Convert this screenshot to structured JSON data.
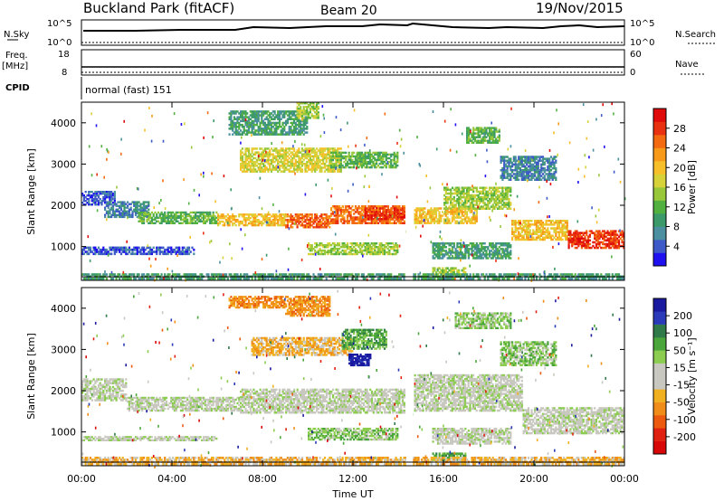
{
  "header": {
    "title": "Buckland Park (fitACF)",
    "beam": "Beam 20",
    "date": "19/Nov/2015"
  },
  "nsky_panel": {
    "label": "N.Sky",
    "right_label": "N.Search",
    "left_ticks": [
      "10^5",
      "10^0"
    ],
    "right_ticks": [
      "10^5",
      "10^0"
    ]
  },
  "freq_panel": {
    "label": "Freq.",
    "unit": "[MHz]",
    "right_label": "Nave",
    "left_ticks": [
      "18",
      "8"
    ],
    "right_ticks": [
      "60",
      "0"
    ]
  },
  "cpid_panel": {
    "label": "CPID",
    "value": "normal (fast) 151"
  },
  "chart_data": [
    {
      "type": "heatmap",
      "quantity": "Power",
      "ylabel": "Slant Range [km]",
      "xlabel": "Time UT",
      "x_ticks": [
        "00:00",
        "04:00",
        "08:00",
        "12:00",
        "16:00",
        "20:00",
        "00:00"
      ],
      "x_range_hours": [
        0,
        24
      ],
      "y_ticks": [
        1000,
        2000,
        3000,
        4000
      ],
      "y_range_km": [
        180,
        4500
      ],
      "colorbar": {
        "label": "Power [dB]",
        "ticks": [
          "4",
          "8",
          "12",
          "16",
          "20",
          "24",
          "28"
        ],
        "colors": [
          "#1f10f0",
          "#3d5ac8",
          "#4b8fa0",
          "#3c9a6a",
          "#52b040",
          "#98c83a",
          "#d8d23a",
          "#f7c02a",
          "#f79a1a",
          "#f36a10",
          "#e93010",
          "#e10a0a"
        ]
      },
      "bands": [
        {
          "t0": 0.0,
          "t1": 1.5,
          "r0": 2000,
          "r1": 2350,
          "c": 1
        },
        {
          "t0": 1.0,
          "t1": 3.0,
          "r0": 1700,
          "r1": 2100,
          "c": 2
        },
        {
          "t0": 2.5,
          "t1": 6.0,
          "r0": 1550,
          "r1": 1850,
          "c": 4
        },
        {
          "t0": 6.0,
          "t1": 9.0,
          "r0": 1500,
          "r1": 1800,
          "c": 7
        },
        {
          "t0": 9.0,
          "t1": 11.0,
          "r0": 1450,
          "r1": 1800,
          "c": 9
        },
        {
          "t0": 11.0,
          "t1": 14.3,
          "r0": 1550,
          "r1": 2000,
          "c": 9
        },
        {
          "t0": 12.5,
          "t1": 14.3,
          "r0": 1650,
          "r1": 1950,
          "c": 10
        },
        {
          "t0": 14.7,
          "t1": 17.5,
          "r0": 1550,
          "r1": 1950,
          "c": 7
        },
        {
          "t0": 16.0,
          "t1": 19.0,
          "r0": 1900,
          "r1": 2450,
          "c": 5
        },
        {
          "t0": 19.0,
          "t1": 21.5,
          "r0": 1150,
          "r1": 1650,
          "c": 7
        },
        {
          "t0": 21.5,
          "t1": 24.0,
          "r0": 950,
          "r1": 1400,
          "c": 10
        },
        {
          "t0": 7.0,
          "t1": 11.5,
          "r0": 2800,
          "r1": 3400,
          "c": 6
        },
        {
          "t0": 11.0,
          "t1": 14.0,
          "r0": 2900,
          "r1": 3300,
          "c": 4
        },
        {
          "t0": 6.5,
          "t1": 10.0,
          "r0": 3700,
          "r1": 4300,
          "c": 3
        },
        {
          "t0": 9.5,
          "t1": 10.5,
          "r0": 4100,
          "r1": 4500,
          "c": 5
        },
        {
          "t0": 17.0,
          "t1": 18.5,
          "r0": 3500,
          "r1": 3900,
          "c": 4
        },
        {
          "t0": 18.5,
          "t1": 21.0,
          "r0": 2600,
          "r1": 3200,
          "c": 2
        },
        {
          "t0": 0.0,
          "t1": 5.0,
          "r0": 800,
          "r1": 1000,
          "c": 1
        },
        {
          "t0": 10.0,
          "t1": 14.0,
          "r0": 800,
          "r1": 1100,
          "c": 5
        },
        {
          "t0": 15.5,
          "t1": 19.0,
          "r0": 700,
          "r1": 1100,
          "c": 3
        },
        {
          "t0": 15.5,
          "t1": 17.0,
          "r0": 300,
          "r1": 500,
          "c": 5
        },
        {
          "t0": 0.0,
          "t1": 24.0,
          "r0": 200,
          "r1": 350,
          "c": 3
        }
      ]
    },
    {
      "type": "heatmap",
      "quantity": "Velocity",
      "ylabel": "Slant Range [km]",
      "xlabel": "Time UT",
      "x_ticks": [
        "00:00",
        "04:00",
        "08:00",
        "12:00",
        "16:00",
        "20:00",
        "00:00"
      ],
      "x_range_hours": [
        0,
        24
      ],
      "y_ticks": [
        1000,
        2000,
        3000,
        4000
      ],
      "y_range_km": [
        180,
        4500
      ],
      "colorbar": {
        "label": "Velocity [m s⁻¹]",
        "ticks": [
          "200",
          "100",
          "50",
          "15",
          "-15",
          "-50",
          "-100",
          "-200"
        ],
        "colors": [
          "#1a1aa0",
          "#2a3ab8",
          "#2f7a48",
          "#4aa63a",
          "#8ccc50",
          "#c8c8c0",
          "#c8c8c0",
          "#f0b020",
          "#f08c18",
          "#ec5a10",
          "#e02010",
          "#d80808"
        ]
      },
      "bands": [
        {
          "t0": 0.0,
          "t1": 2.0,
          "r0": 1750,
          "r1": 2300,
          "c": 5
        },
        {
          "t0": 2.0,
          "t1": 7.0,
          "r0": 1500,
          "r1": 1850,
          "c": 5
        },
        {
          "t0": 7.0,
          "t1": 14.3,
          "r0": 1450,
          "r1": 2050,
          "c": 5
        },
        {
          "t0": 14.7,
          "t1": 19.5,
          "r0": 1500,
          "r1": 2400,
          "c": 5
        },
        {
          "t0": 19.5,
          "t1": 24.0,
          "r0": 950,
          "r1": 1600,
          "c": 5
        },
        {
          "t0": 7.5,
          "t1": 12.0,
          "r0": 2850,
          "r1": 3300,
          "c": 7
        },
        {
          "t0": 11.5,
          "t1": 13.5,
          "r0": 3000,
          "r1": 3500,
          "c": 3
        },
        {
          "t0": 9.0,
          "t1": 11.0,
          "r0": 3800,
          "r1": 4300,
          "c": 8
        },
        {
          "t0": 6.5,
          "t1": 9.0,
          "r0": 4000,
          "r1": 4300,
          "c": 8
        },
        {
          "t0": 16.5,
          "t1": 19.0,
          "r0": 3500,
          "r1": 3900,
          "c": 4
        },
        {
          "t0": 18.5,
          "t1": 21.0,
          "r0": 2600,
          "r1": 3200,
          "c": 4
        },
        {
          "t0": 0.0,
          "t1": 6.0,
          "r0": 780,
          "r1": 900,
          "c": 5
        },
        {
          "t0": 10.0,
          "t1": 14.0,
          "r0": 800,
          "r1": 1100,
          "c": 4
        },
        {
          "t0": 15.5,
          "t1": 19.0,
          "r0": 700,
          "r1": 1100,
          "c": 5
        },
        {
          "t0": 15.5,
          "t1": 17.0,
          "r0": 300,
          "r1": 500,
          "c": 3
        },
        {
          "t0": 0.0,
          "t1": 24.0,
          "r0": 200,
          "r1": 400,
          "c": 7
        },
        {
          "t0": 11.8,
          "t1": 12.8,
          "r0": 2600,
          "r1": 2900,
          "c": 0
        }
      ]
    }
  ]
}
